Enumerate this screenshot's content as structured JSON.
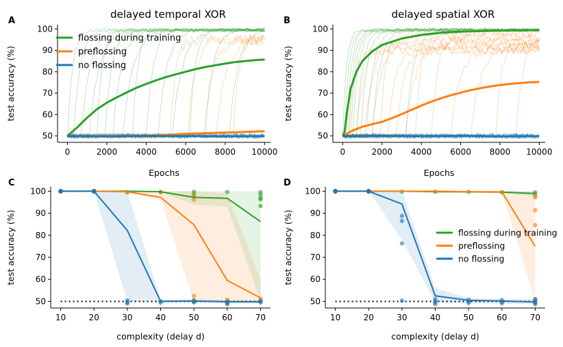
{
  "colors": {
    "green": "#2ca02c",
    "orange": "#ff7f0e",
    "blue": "#1f77b4",
    "gray": "#666666"
  },
  "chart_data": [
    {
      "panel": "A",
      "type": "line",
      "title": "delayed temporal XOR",
      "xlabel": "Epochs",
      "ylabel": "test accuracy (%)",
      "xlim": [
        -500,
        10300
      ],
      "ylim": [
        47,
        102
      ],
      "xticks": [
        0,
        2000,
        4000,
        6000,
        8000,
        10000
      ],
      "xtick_labels": [
        "0",
        "2000",
        "4000",
        "6000",
        "8000",
        "10000"
      ],
      "yticks": [
        50,
        60,
        70,
        80,
        90,
        100
      ],
      "ytick_labels": [
        "50",
        "60",
        "70",
        "80",
        "90",
        "100"
      ],
      "legend": [
        "flossing during training",
        "preflossing",
        "no flossing"
      ],
      "legend_position": "upper-left",
      "series": [
        {
          "name": "flossing during training",
          "color": "green",
          "width": 3,
          "x": [
            0,
            500,
            1000,
            1500,
            2000,
            2500,
            3000,
            3500,
            4000,
            4500,
            5000,
            5500,
            6000,
            6500,
            7000,
            7500,
            8000,
            8500,
            9000,
            9500,
            10000
          ],
          "y": [
            50,
            54,
            58.5,
            62.5,
            65.5,
            68,
            70.3,
            72.5,
            74.3,
            76,
            77.5,
            78.8,
            80,
            81.2,
            82.2,
            83,
            83.8,
            84.5,
            85,
            85.4,
            85.7
          ]
        },
        {
          "name": "preflossing",
          "color": "orange",
          "width": 3,
          "x": [
            0,
            2000,
            4000,
            5000,
            6000,
            7000,
            8000,
            9000,
            10000
          ],
          "y": [
            50,
            50,
            50.2,
            50.5,
            51,
            51.3,
            51.6,
            51.9,
            52.2
          ]
        },
        {
          "name": "no flossing",
          "color": "blue",
          "width": 3,
          "x": [
            0,
            2000,
            4000,
            6000,
            8000,
            10000
          ],
          "y": [
            49.9,
            49.8,
            50,
            49.9,
            49.8,
            49.9
          ]
        }
      ],
      "individual_run_starts": {
        "flossing during training": [
          0,
          300,
          700,
          1100,
          1500,
          1900,
          2300,
          2800,
          3300,
          4000,
          4600,
          5300,
          6200,
          7000,
          8200
        ],
        "preflossing": [
          5200,
          6100,
          6900,
          7500,
          8400
        ]
      }
    },
    {
      "panel": "B",
      "type": "line",
      "title": "delayed spatial XOR",
      "xlabel": "Epochs",
      "ylabel": "test accuracy (%)",
      "xlim": [
        -500,
        10300
      ],
      "ylim": [
        47,
        102
      ],
      "xticks": [
        0,
        2000,
        4000,
        6000,
        8000,
        10000
      ],
      "xtick_labels": [
        "0",
        "2000",
        "4000",
        "6000",
        "8000",
        "10000"
      ],
      "yticks": [
        50,
        60,
        70,
        80,
        90,
        100
      ],
      "ytick_labels": [
        "50",
        "60",
        "70",
        "80",
        "90",
        "100"
      ],
      "series": [
        {
          "name": "flossing during training",
          "color": "green",
          "width": 3,
          "x": [
            0,
            100,
            200,
            400,
            700,
            1000,
            1500,
            2000,
            3000,
            4000,
            5000,
            6000,
            7000,
            8000,
            9000,
            10000
          ],
          "y": [
            50,
            52,
            60,
            72,
            80,
            85,
            89.5,
            92.5,
            95.5,
            97.2,
            98.2,
            98.7,
            99,
            99.2,
            99.3,
            99.4
          ]
        },
        {
          "name": "preflossing",
          "color": "orange",
          "width": 3,
          "x": [
            0,
            500,
            1000,
            1500,
            2000,
            2500,
            3000,
            3500,
            4000,
            4500,
            5000,
            5500,
            6000,
            6500,
            7000,
            7500,
            8000,
            8500,
            9000,
            9500,
            10000
          ],
          "y": [
            50,
            52.5,
            54.3,
            55.5,
            56.6,
            58.3,
            60.2,
            62.2,
            64.2,
            66,
            67.6,
            69,
            70.2,
            71.4,
            72.3,
            73.1,
            73.8,
            74.3,
            74.7,
            75,
            75.2
          ]
        },
        {
          "name": "no flossing",
          "color": "blue",
          "width": 3,
          "x": [
            0,
            2000,
            4000,
            6000,
            8000,
            10000
          ],
          "y": [
            49.9,
            50,
            49.9,
            50,
            49.8,
            49.9
          ]
        }
      ],
      "individual_run_starts": {
        "flossing during training": [
          0,
          100,
          200,
          300,
          400,
          500,
          700,
          900,
          1200,
          1500,
          3200
        ],
        "preflossing": [
          300,
          700,
          1100,
          1500,
          1900,
          2300,
          2700,
          3200,
          3700,
          4500,
          5500,
          6500,
          7800,
          8800
        ]
      }
    },
    {
      "panel": "C",
      "type": "line",
      "title": "",
      "xlabel": "complexity (delay d)",
      "ylabel": "test accuracy (%)",
      "xlim": [
        7,
        73
      ],
      "ylim": [
        47,
        102
      ],
      "xticks": [
        10,
        20,
        30,
        40,
        50,
        60,
        70
      ],
      "xtick_labels": [
        "10",
        "20",
        "30",
        "40",
        "50",
        "60",
        "70"
      ],
      "yticks": [
        50,
        60,
        70,
        80,
        90,
        100
      ],
      "ytick_labels": [
        "50",
        "60",
        "70",
        "80",
        "90",
        "100"
      ],
      "chance_level": 50,
      "series": [
        {
          "name": "flossing during training",
          "color": "green",
          "x": [
            10,
            20,
            30,
            40,
            50,
            60,
            70
          ],
          "y": [
            100,
            100,
            100,
            99.8,
            97.2,
            96.8,
            86.2
          ],
          "band_low": [
            100,
            100,
            100,
            99.5,
            94,
            93,
            50
          ],
          "band_high": [
            100,
            100,
            100,
            100,
            100,
            100,
            100
          ],
          "scatter": [
            [
              30,
              99.5
            ],
            [
              40,
              99.5
            ],
            [
              50,
              99.8
            ],
            [
              50,
              98.5
            ],
            [
              60,
              99.7
            ],
            [
              70,
              99.6
            ],
            [
              70,
              98.4
            ],
            [
              70,
              97
            ],
            [
              70,
              96.3
            ],
            [
              70,
              93.3
            ],
            [
              70,
              50
            ],
            [
              50,
              49.6
            ],
            [
              60,
              49.7
            ]
          ]
        },
        {
          "name": "preflossing",
          "color": "orange",
          "x": [
            10,
            20,
            30,
            40,
            50,
            60,
            70
          ],
          "y": [
            100,
            100,
            99.8,
            97.2,
            84.8,
            59.5,
            51.6
          ],
          "band_low": [
            100,
            100,
            99.5,
            96,
            50,
            50,
            49.5
          ],
          "band_high": [
            100,
            100,
            100,
            100,
            100,
            99,
            60
          ],
          "scatter": [
            [
              30,
              99.6
            ],
            [
              40,
              99.8
            ],
            [
              50,
              97.6
            ],
            [
              50,
              96.2
            ],
            [
              50,
              52.5
            ],
            [
              50,
              50.6
            ],
            [
              60,
              50.8
            ],
            [
              60,
              49.4
            ],
            [
              70,
              51.2
            ],
            [
              70,
              50.2
            ]
          ]
        },
        {
          "name": "no flossing",
          "color": "blue",
          "x": [
            10,
            20,
            30,
            40,
            50,
            60,
            70
          ],
          "y": [
            100,
            100,
            82.2,
            50,
            50.2,
            49.8,
            49.8
          ],
          "band_low": [
            100,
            100,
            50,
            49.5,
            49.5,
            49.2,
            49.2
          ],
          "band_high": [
            100,
            100,
            100,
            50.5,
            51,
            50.5,
            50.5
          ],
          "scatter": [
            [
              30,
              50.4
            ],
            [
              30,
              49.6
            ],
            [
              30,
              49.1
            ],
            [
              40,
              50.1
            ],
            [
              40,
              49.4
            ],
            [
              50,
              50.3
            ],
            [
              50,
              49.7
            ],
            [
              60,
              50
            ],
            [
              60,
              49.3
            ],
            [
              60,
              48.7
            ],
            [
              70,
              50.3
            ],
            [
              70,
              49.5
            ]
          ]
        }
      ]
    },
    {
      "panel": "D",
      "type": "line",
      "title": "",
      "xlabel": "complexity (delay d)",
      "ylabel": "test accuracy (%)",
      "xlim": [
        7,
        73
      ],
      "ylim": [
        47,
        102
      ],
      "xticks": [
        10,
        20,
        30,
        40,
        50,
        60,
        70
      ],
      "xtick_labels": [
        "10",
        "20",
        "30",
        "40",
        "50",
        "60",
        "70"
      ],
      "yticks": [
        50,
        60,
        70,
        80,
        90,
        100
      ],
      "ytick_labels": [
        "50",
        "60",
        "70",
        "80",
        "90",
        "100"
      ],
      "chance_level": 50,
      "legend": [
        "flossing during training",
        "preflossing",
        "no flossing"
      ],
      "legend_position": "center-right",
      "series": [
        {
          "name": "flossing during training",
          "color": "green",
          "x": [
            10,
            20,
            30,
            40,
            50,
            60,
            70
          ],
          "y": [
            100,
            100,
            100,
            99.8,
            99.7,
            99.6,
            99
          ],
          "band_low": [
            100,
            100,
            100,
            99.5,
            99.4,
            99.3,
            97.5
          ],
          "band_high": [
            100,
            100,
            100,
            100,
            100,
            100,
            100
          ],
          "scatter": [
            [
              30,
              99.8
            ],
            [
              40,
              99.8
            ],
            [
              50,
              99.7
            ],
            [
              60,
              99.6
            ],
            [
              70,
              99.5
            ],
            [
              70,
              98.7
            ]
          ]
        },
        {
          "name": "preflossing",
          "color": "orange",
          "x": [
            10,
            20,
            30,
            40,
            50,
            60,
            70
          ],
          "y": [
            100,
            100,
            100,
            100,
            99.8,
            99.7,
            75
          ],
          "band_low": [
            100,
            100,
            100,
            100,
            99.5,
            99.4,
            50
          ],
          "band_high": [
            100,
            100,
            100,
            100,
            100,
            100,
            100
          ],
          "scatter": [
            [
              60,
              99.5
            ],
            [
              70,
              98
            ],
            [
              70,
              97.2
            ],
            [
              70,
              91.4
            ],
            [
              70,
              84.6
            ],
            [
              70,
              51
            ],
            [
              70,
              49.5
            ]
          ]
        },
        {
          "name": "no flossing",
          "color": "blue",
          "x": [
            10,
            20,
            30,
            40,
            50,
            60,
            70
          ],
          "y": [
            100,
            100,
            94.2,
            52.5,
            50.5,
            50.2,
            49.7
          ],
          "band_low": [
            100,
            100,
            78,
            49.5,
            49,
            49,
            48.8
          ],
          "band_high": [
            100,
            100,
            100,
            56,
            51.5,
            51,
            51
          ],
          "scatter": [
            [
              30,
              88.8
            ],
            [
              30,
              86.5
            ],
            [
              30,
              76.3
            ],
            [
              30,
              50.3
            ],
            [
              40,
              51
            ],
            [
              40,
              50.2
            ],
            [
              40,
              49.5
            ],
            [
              40,
              48.8
            ],
            [
              50,
              50.8
            ],
            [
              50,
              50
            ],
            [
              50,
              49.3
            ],
            [
              60,
              50.6
            ],
            [
              60,
              49.8
            ],
            [
              60,
              49.2
            ],
            [
              70,
              51
            ],
            [
              70,
              50.2
            ],
            [
              70,
              49.4
            ],
            [
              70,
              48.7
            ]
          ]
        }
      ]
    }
  ]
}
